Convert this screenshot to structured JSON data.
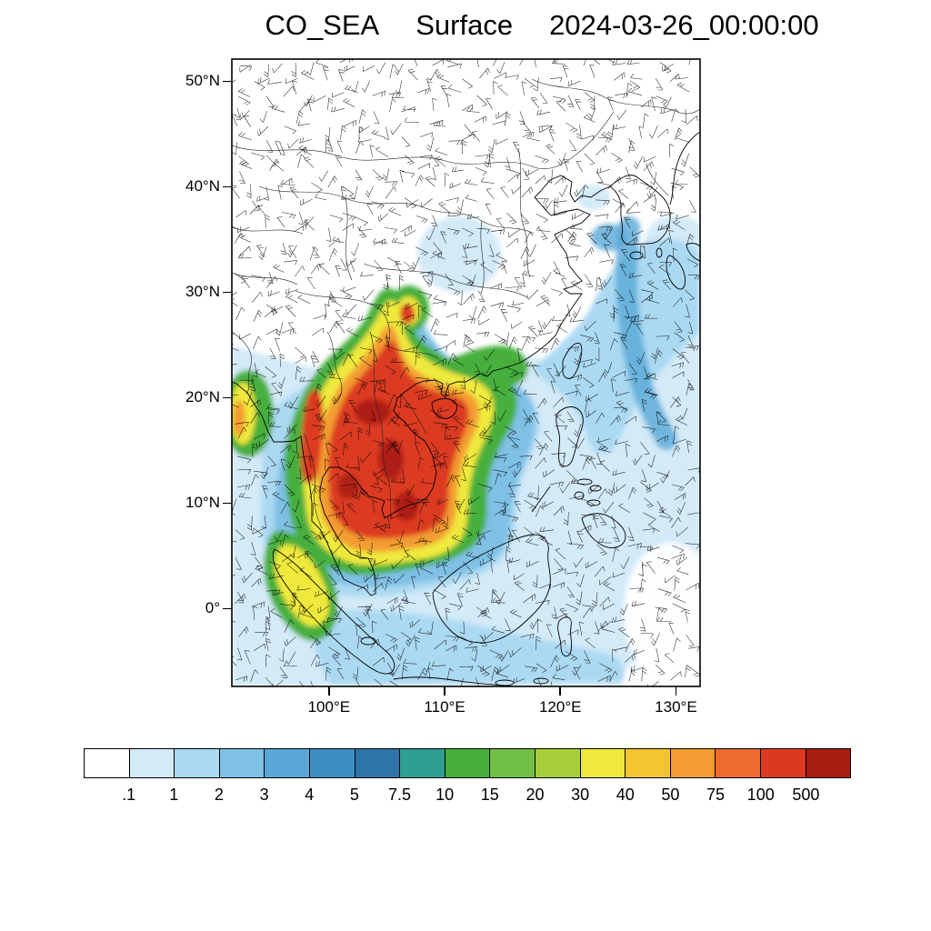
{
  "title": {
    "parts": [
      "CO_SEA",
      "Surface",
      "2024-03-26_00:00:00"
    ]
  },
  "axes": {
    "lat_ticks": [
      "50°N",
      "40°N",
      "30°N",
      "20°N",
      "10°N",
      "0°"
    ],
    "lon_ticks": [
      "100°E",
      "110°E",
      "120°E",
      "130°E"
    ]
  },
  "colorbar": {
    "labels": [
      ".1",
      "1",
      "2",
      "3",
      "4",
      "5",
      "7.5",
      "10",
      "15",
      "20",
      "30",
      "40",
      "50",
      "75",
      "100",
      "500"
    ],
    "colors": [
      "#FFFFFF",
      "#D3EAF8",
      "#ABD9F2",
      "#7FC0E5",
      "#58A7D6",
      "#3E8EC4",
      "#2E74A8",
      "#2E9E93",
      "#46AF3E",
      "#71BF44",
      "#A5CE39",
      "#EFE93C",
      "#F4C431",
      "#F39C31",
      "#EE6A2E",
      "#DC3A20",
      "#A81C11"
    ]
  },
  "chart_data": {
    "type": "heatmap",
    "title": "CO_SEA Surface 2024-03-26_00:00:00",
    "variable": "CO",
    "level": "Surface",
    "valid_time": "2024-03-26_00:00:00",
    "projection": "lat-lon map of Southeast / East Asia",
    "lat_tick_labels": [
      "50°N",
      "40°N",
      "30°N",
      "20°N",
      "10°N",
      "0°"
    ],
    "lon_tick_labels": [
      "100°E",
      "110°E",
      "120°E",
      "130°E"
    ],
    "contour_levels": [
      0.1,
      1,
      2,
      3,
      4,
      5,
      7.5,
      10,
      15,
      20,
      30,
      40,
      50,
      75,
      100,
      500
    ],
    "palette_hex": [
      "#FFFFFF",
      "#D3EAF8",
      "#ABD9F2",
      "#7FC0E5",
      "#58A7D6",
      "#3E8EC4",
      "#2E74A8",
      "#2E9E93",
      "#46AF3E",
      "#71BF44",
      "#A5CE39",
      "#EFE93C",
      "#F4C431",
      "#F39C31",
      "#EE6A2E",
      "#DC3A20",
      "#A81C11"
    ],
    "overlays": [
      "wind barbs",
      "coastlines",
      "country and province borders"
    ],
    "high_value_region": "Indochina peninsula and Myanmar, values above 100",
    "low_value_region": "Northern China and open western Pacific, values below 0.1"
  }
}
